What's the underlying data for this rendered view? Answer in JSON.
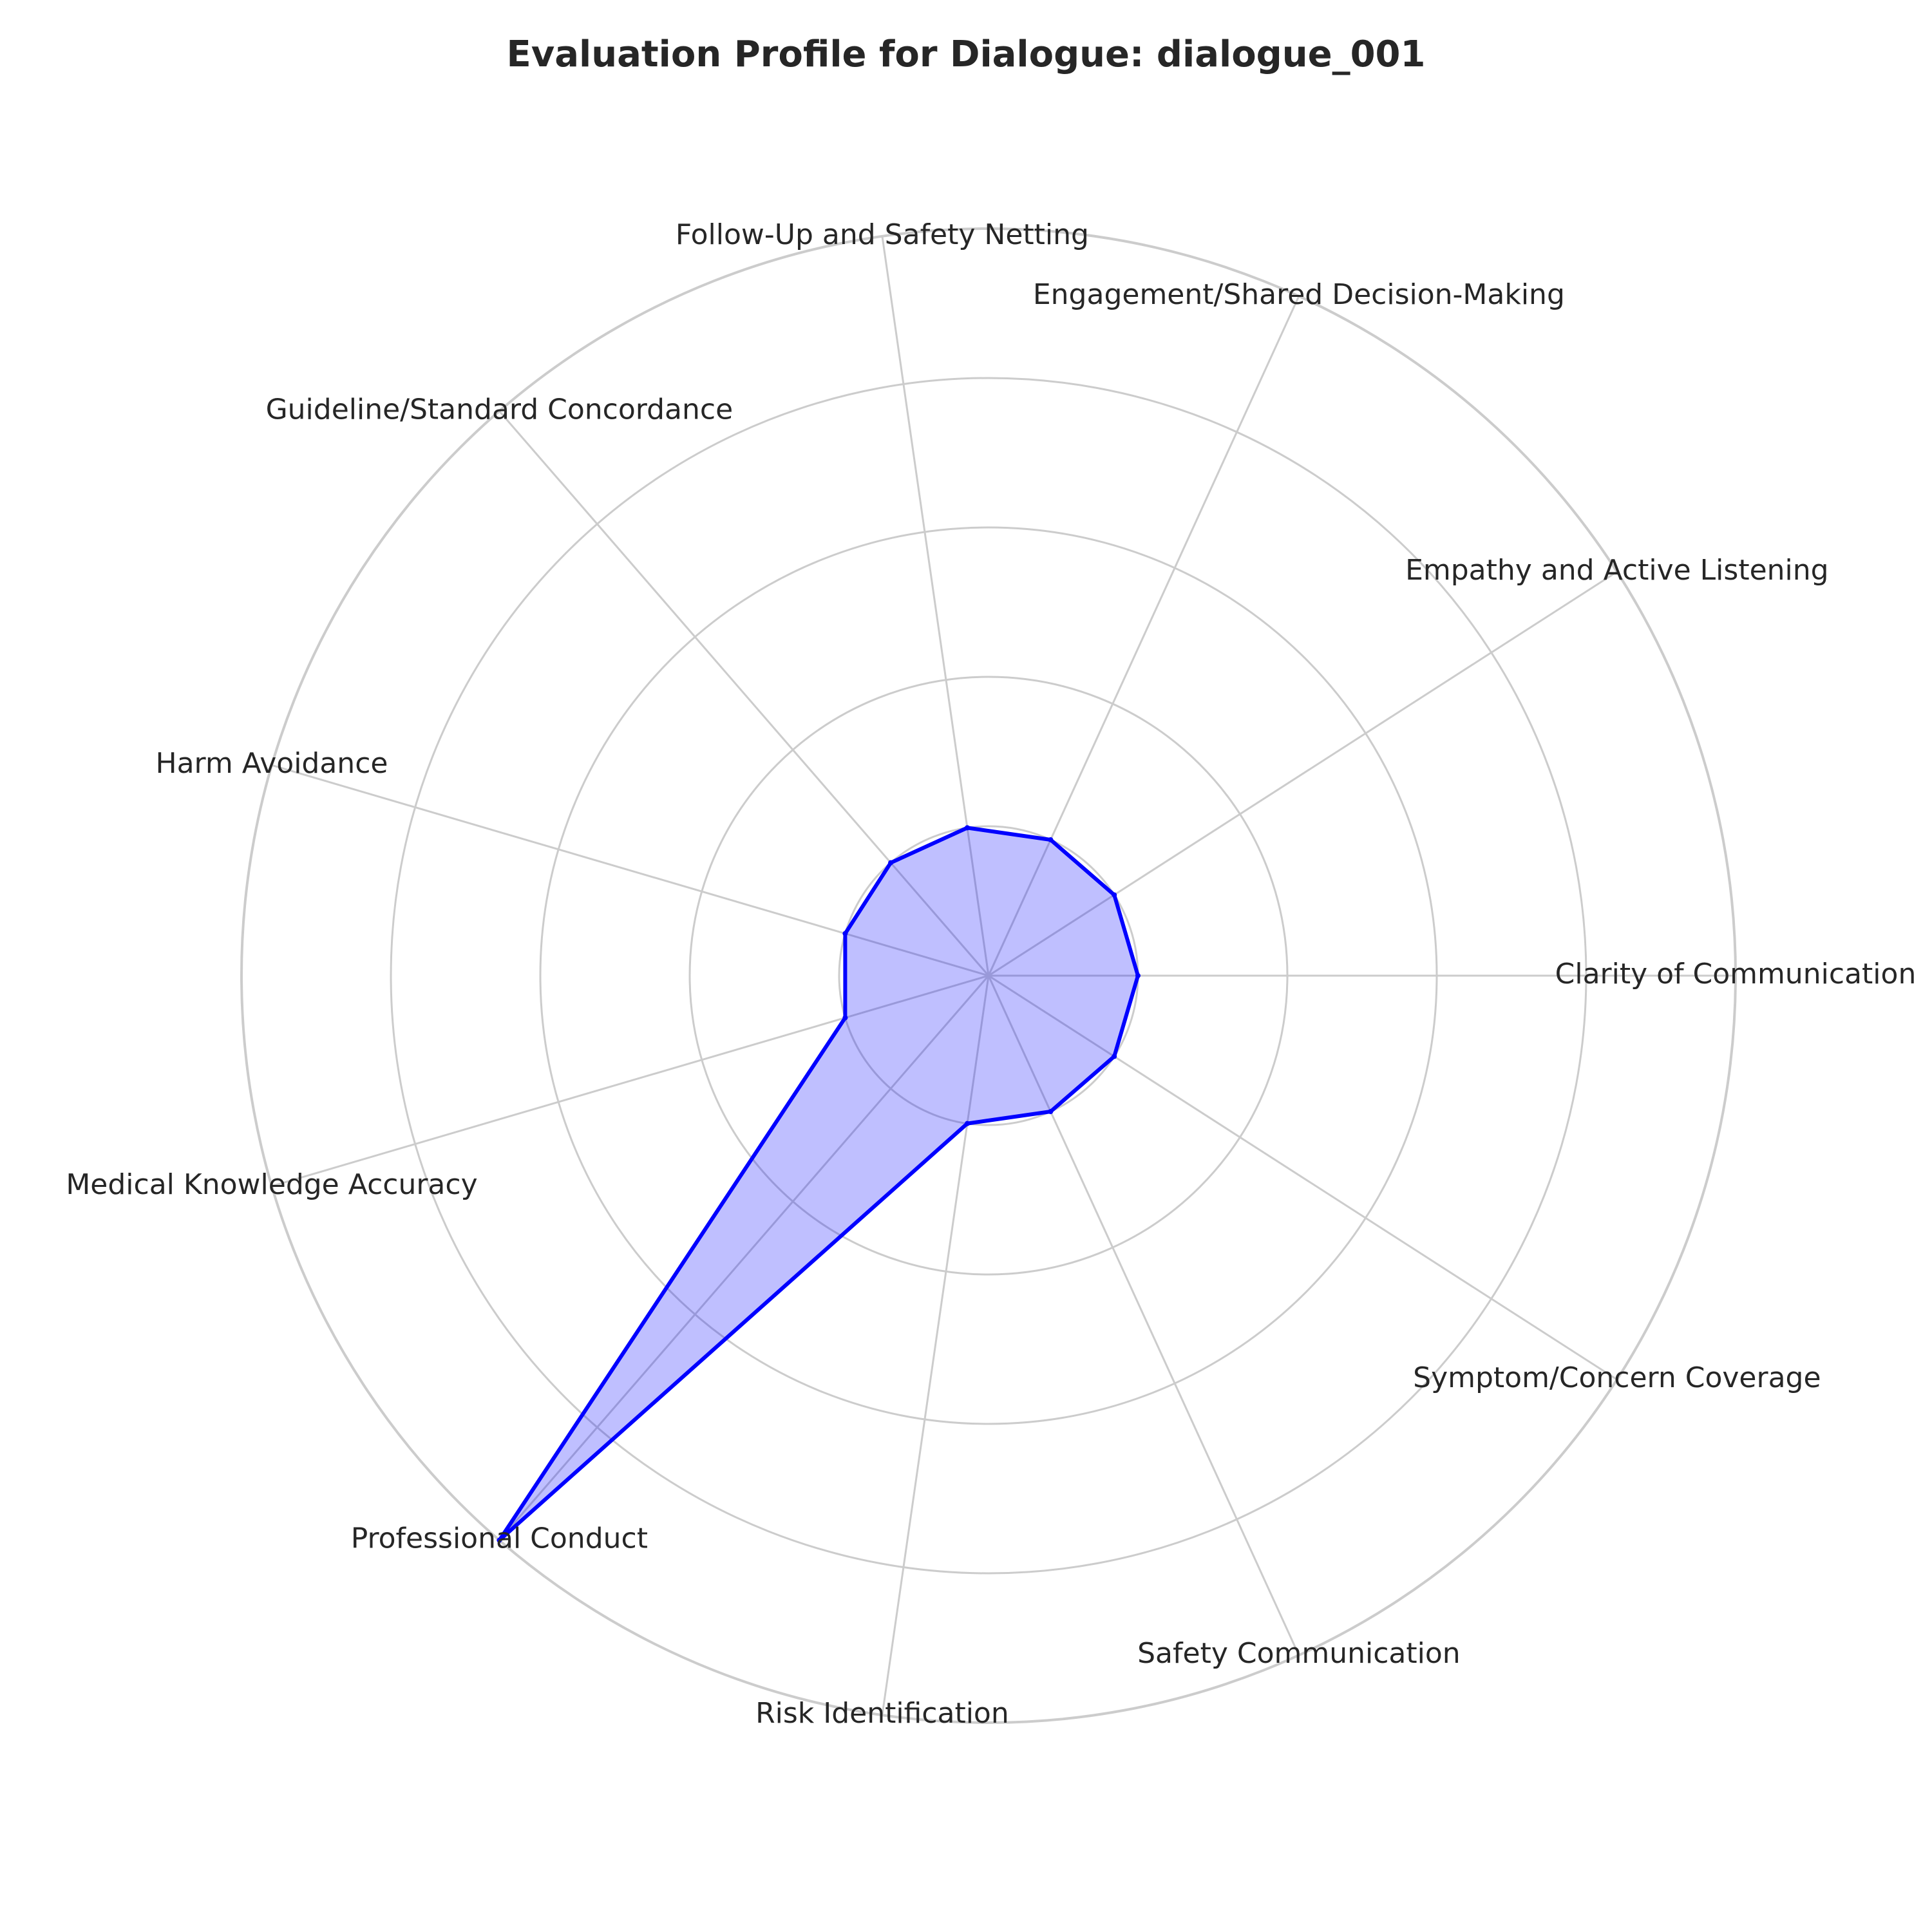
{
  "chart_data": {
    "type": "radar",
    "title": "Evaluation Profile for Dialogue: dialogue_001",
    "categories": [
      "Clarity of Communication",
      "Empathy and Active Listening",
      "Engagement/Shared Decision-Making",
      "Follow-Up and Safety Netting",
      "Guideline/Standard Concordance",
      "Harm Avoidance",
      "Medical Knowledge Accuracy",
      "Professional Conduct",
      "Risk Identification",
      "Safety Communication",
      "Symptom/Concern Coverage"
    ],
    "series": [
      {
        "name": "dialogue_001",
        "values": [
          1,
          1,
          1,
          1,
          1,
          1,
          1,
          5,
          1,
          1,
          1
        ]
      }
    ],
    "rlim": [
      0,
      5
    ],
    "grid": true,
    "colors": {
      "line": "#0000ff",
      "fill": "#0000ff",
      "grid": "#cccccc"
    }
  }
}
